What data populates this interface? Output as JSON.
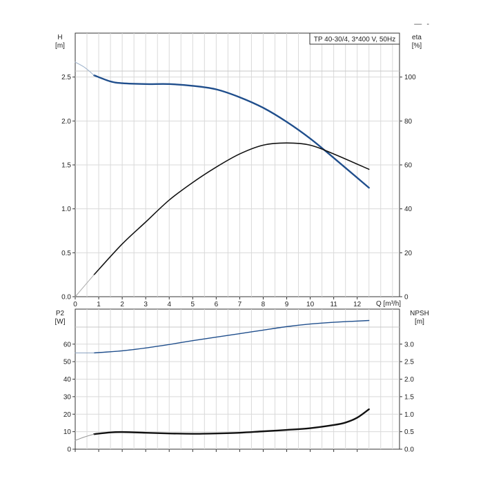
{
  "corner_mark": "—  -",
  "chart_data": [
    {
      "type": "line",
      "title": "TP 40-30/4, 3*400 V, 50Hz",
      "xlabel": "Q [m³/h]",
      "xlim": [
        0,
        13.8
      ],
      "x_ticks": [
        0,
        1,
        2,
        3,
        4,
        5,
        6,
        7,
        8,
        9,
        10,
        11,
        12
      ],
      "grid": true,
      "left_axis": {
        "label_top": "H",
        "label_unit": "[m]",
        "ylim": [
          0,
          3.0
        ],
        "ticks": [
          "0.0",
          "0.5",
          "1.0",
          "1.5",
          "2.0",
          "2.5"
        ]
      },
      "right_axis": {
        "label_top": "eta",
        "label_unit": "[%]",
        "ylim": [
          0,
          120
        ],
        "ticks": [
          "0",
          "20",
          "40",
          "60",
          "80",
          "100"
        ]
      },
      "series": [
        {
          "axis": "left",
          "color": "#1f4e8c",
          "width": 2.4,
          "x": [
            0.8,
            1.5,
            2.0,
            3.0,
            4.0,
            5.0,
            6.0,
            7.0,
            8.0,
            9.0,
            10.0,
            11.0,
            12.5
          ],
          "values": [
            2.52,
            2.45,
            2.43,
            2.42,
            2.42,
            2.4,
            2.36,
            2.27,
            2.15,
            1.99,
            1.8,
            1.58,
            1.24
          ]
        },
        {
          "axis": "left",
          "color": "#9fb3cc",
          "width": 1,
          "x": [
            0.0,
            0.4,
            0.8
          ],
          "values": [
            2.67,
            2.61,
            2.52
          ]
        },
        {
          "axis": "right",
          "color": "#111111",
          "width": 1.6,
          "x": [
            0.8,
            2.0,
            3.0,
            4.0,
            5.0,
            6.0,
            7.0,
            8.0,
            9.0,
            10.0,
            11.0,
            12.5
          ],
          "values": [
            10,
            24,
            34,
            44,
            52,
            59,
            65,
            69,
            70,
            69,
            65,
            58
          ]
        },
        {
          "axis": "right",
          "color": "#aaaaaa",
          "width": 1,
          "x": [
            0.0,
            0.4,
            0.8
          ],
          "values": [
            0,
            5,
            10
          ]
        }
      ]
    },
    {
      "type": "line",
      "xlim": [
        0,
        13.8
      ],
      "x_ticks": [
        0,
        1,
        2,
        3,
        4,
        5,
        6,
        7,
        8,
        9,
        10,
        11,
        12
      ],
      "grid": true,
      "left_axis": {
        "label_top": "P2",
        "label_unit": "[W]",
        "ylim": [
          0,
          80
        ],
        "ticks": [
          "0",
          "10",
          "20",
          "30",
          "40",
          "50",
          "60"
        ]
      },
      "right_axis": {
        "label_top": "NPSH",
        "label_unit": "[m]",
        "ylim": [
          0,
          4.0
        ],
        "ticks": [
          "0.0",
          "0.5",
          "1.0",
          "1.5",
          "2.0",
          "2.5",
          "3.0"
        ]
      },
      "series": [
        {
          "axis": "left",
          "color": "#1f4e8c",
          "width": 1.4,
          "x": [
            0.8,
            2.0,
            3.0,
            4.0,
            5.0,
            6.0,
            7.0,
            8.0,
            9.0,
            10.0,
            11.0,
            12.5
          ],
          "values": [
            55,
            56.2,
            57.8,
            59.8,
            62,
            64,
            66,
            68,
            70,
            71.5,
            72.5,
            73.5
          ]
        },
        {
          "axis": "left",
          "color": "#8aa2c2",
          "width": 1,
          "x": [
            0.0,
            0.8
          ],
          "values": [
            55,
            55
          ]
        },
        {
          "axis": "right",
          "color": "#111111",
          "width": 2.4,
          "x": [
            0.8,
            1.5,
            2.0,
            3.0,
            4.0,
            5.0,
            6.0,
            7.0,
            8.0,
            9.0,
            10.0,
            11.0,
            11.5,
            12.0,
            12.5
          ],
          "values": [
            0.43,
            0.48,
            0.49,
            0.47,
            0.45,
            0.44,
            0.45,
            0.47,
            0.51,
            0.55,
            0.6,
            0.69,
            0.76,
            0.9,
            1.14
          ]
        },
        {
          "axis": "right",
          "color": "#999999",
          "width": 1,
          "x": [
            0.0,
            0.4,
            0.8
          ],
          "values": [
            0.25,
            0.35,
            0.43
          ]
        }
      ]
    }
  ]
}
